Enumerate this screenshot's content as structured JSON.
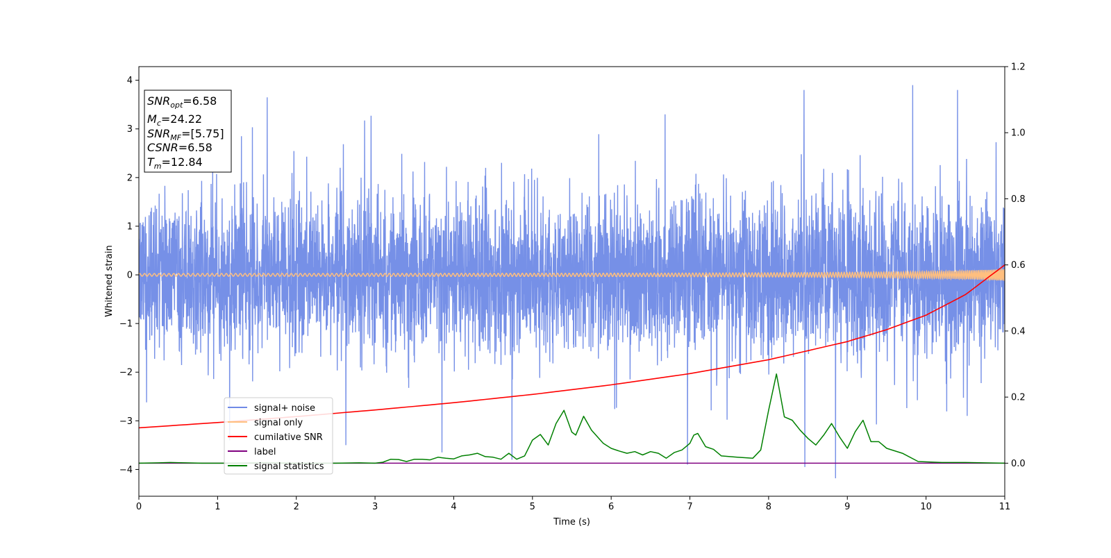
{
  "chart_data": {
    "type": "line",
    "title": "",
    "xlabel": "Time (s)",
    "ylabel": "Whitened strain",
    "xlim": [
      0,
      11
    ],
    "ylim": [
      -4.55,
      4.28
    ],
    "y2lim": [
      -0.1,
      1.2
    ],
    "xticks": [
      0,
      1,
      2,
      3,
      4,
      5,
      6,
      7,
      8,
      9,
      10,
      11
    ],
    "yticks": [
      -4,
      -3,
      -2,
      -1,
      0,
      1,
      2,
      3,
      4
    ],
    "y2ticks": [
      "0.0",
      "0.2",
      "0.4",
      "0.6",
      "0.8",
      "1.0",
      "1.2"
    ],
    "grid": false,
    "legend_position": "lower-left",
    "annotation": {
      "lines": [
        {
          "sym": "SNR",
          "sub": "opt",
          "val": "=6.58"
        },
        {
          "sym": "M",
          "sub": "c",
          "val": "=24.22"
        },
        {
          "sym": "SNR",
          "sub": "MF",
          "val": "=[5.75]"
        },
        {
          "sym": "CSNR",
          "sub": "",
          "val": "=6.58"
        },
        {
          "sym": "T",
          "sub": "m",
          "val": "=12.84"
        }
      ]
    },
    "series": [
      {
        "name": "signal+ noise",
        "color": "#6f8ae6",
        "axis": "left",
        "description": "dense whitened noise roughly between -2 and +2 with spikes up to about +3.9 and down to about -4.2",
        "notable_extremes": [
          {
            "x": 1.63,
            "y": 3.65
          },
          {
            "x": 2.95,
            "y": 3.27
          },
          {
            "x": 8.45,
            "y": 3.8
          },
          {
            "x": 9.83,
            "y": 3.9
          },
          {
            "x": 10.4,
            "y": 3.8
          },
          {
            "x": 8.85,
            "y": -4.18
          },
          {
            "x": 8.46,
            "y": -3.95
          },
          {
            "x": 3.85,
            "y": -3.65
          },
          {
            "x": 4.74,
            "y": -3.8
          },
          {
            "x": 6.97,
            "y": -3.9
          },
          {
            "x": 2.63,
            "y": -3.5
          }
        ]
      },
      {
        "name": "signal only",
        "color": "#ffbf7f",
        "axis": "left",
        "description": "chirp oscillation around 0, amplitude growing from about 0.03 to 0.17 near t=11"
      },
      {
        "name": "cumilative SNR",
        "color": "#ff0000",
        "axis": "right",
        "x": [
          0,
          1,
          2,
          3,
          4,
          5,
          6,
          7,
          8,
          9,
          9.5,
          10,
          10.5,
          11
        ],
        "y": [
          0.107,
          0.123,
          0.141,
          0.161,
          0.183,
          0.208,
          0.237,
          0.271,
          0.313,
          0.368,
          0.404,
          0.448,
          0.51,
          0.6
        ]
      },
      {
        "name": "label",
        "color": "#800080",
        "axis": "right",
        "x": [
          0,
          11
        ],
        "y": [
          0,
          0
        ]
      },
      {
        "name": "signal statistics",
        "color": "#008000",
        "axis": "right",
        "x": [
          0,
          0.25,
          0.4,
          0.6,
          0.8,
          1.2,
          1.6,
          2.0,
          2.5,
          2.8,
          3.0,
          3.1,
          3.2,
          3.3,
          3.4,
          3.5,
          3.6,
          3.7,
          3.8,
          3.9,
          4.0,
          4.1,
          4.2,
          4.3,
          4.4,
          4.5,
          4.6,
          4.7,
          4.8,
          4.9,
          5.0,
          5.1,
          5.2,
          5.3,
          5.4,
          5.5,
          5.55,
          5.65,
          5.75,
          5.9,
          6.0,
          6.1,
          6.2,
          6.3,
          6.4,
          6.5,
          6.6,
          6.7,
          6.8,
          6.9,
          7.0,
          7.05,
          7.1,
          7.2,
          7.3,
          7.4,
          7.6,
          7.8,
          7.9,
          8.0,
          8.1,
          8.2,
          8.3,
          8.4,
          8.5,
          8.6,
          8.7,
          8.8,
          8.9,
          9.0,
          9.1,
          9.2,
          9.3,
          9.4,
          9.5,
          9.7,
          9.9,
          10.2,
          10.5,
          11
        ],
        "y": [
          0,
          0.001,
          0.002,
          0.001,
          0,
          0,
          0.001,
          0,
          0,
          0.001,
          0,
          0.003,
          0.012,
          0.011,
          0.005,
          0.012,
          0.012,
          0.01,
          0.018,
          0.015,
          0.013,
          0.022,
          0.025,
          0.03,
          0.02,
          0.018,
          0.012,
          0.03,
          0.012,
          0.022,
          0.07,
          0.087,
          0.055,
          0.12,
          0.16,
          0.094,
          0.085,
          0.142,
          0.1,
          0.06,
          0.045,
          0.037,
          0.03,
          0.035,
          0.025,
          0.035,
          0.03,
          0.015,
          0.032,
          0.04,
          0.06,
          0.085,
          0.09,
          0.05,
          0.042,
          0.022,
          0.018,
          0.015,
          0.04,
          0.16,
          0.27,
          0.14,
          0.13,
          0.1,
          0.075,
          0.055,
          0.085,
          0.12,
          0.08,
          0.045,
          0.095,
          0.13,
          0.065,
          0.065,
          0.045,
          0.03,
          0.005,
          0.002,
          0.002,
          0
        ]
      }
    ]
  }
}
